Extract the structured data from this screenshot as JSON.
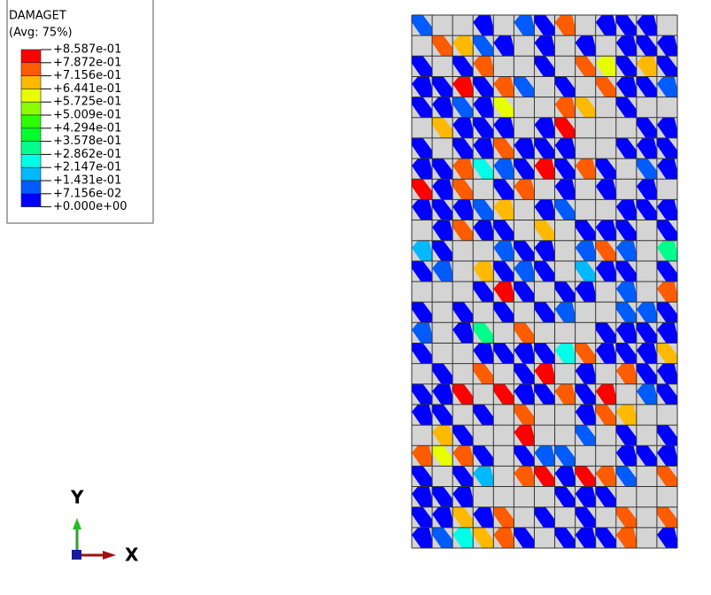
{
  "legend": {
    "title": "DAMAGET",
    "subtitle": "(Avg: 75%)",
    "labels": [
      "+8.587e-01",
      "+7.872e-01",
      "+7.156e-01",
      "+6.441e-01",
      "+5.725e-01",
      "+5.009e-01",
      "+4.294e-01",
      "+3.578e-01",
      "+2.862e-01",
      "+2.147e-01",
      "+1.431e-01",
      "+7.156e-02",
      "+0.000e+00"
    ],
    "colors": [
      "#ff0000",
      "#ff5c00",
      "#ffb900",
      "#e8ff00",
      "#8bff00",
      "#2eff00",
      "#00ff2e",
      "#00ff8b",
      "#00ffe8",
      "#00b9ff",
      "#005cff",
      "#0000ff"
    ]
  },
  "triad": {
    "y_label": "Y",
    "x_label": "X"
  }
}
